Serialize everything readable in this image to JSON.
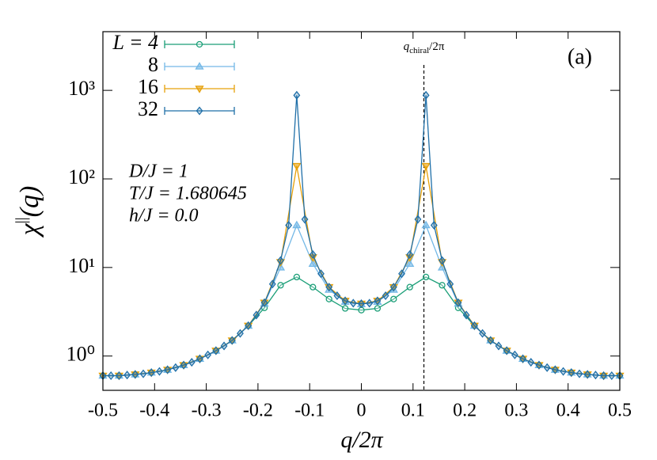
{
  "chart_data": {
    "type": "line",
    "xlabel": "q/2π",
    "ylabel": [
      "χ",
      "||",
      "(q)"
    ],
    "log_y": true,
    "xlim": [
      -0.5,
      0.5
    ],
    "ylim": [
      0.41,
      4600
    ],
    "xticks": [
      -0.5,
      -0.4,
      -0.3,
      -0.2,
      -0.1,
      0,
      0.1,
      0.2,
      0.3,
      0.4,
      0.5
    ],
    "yticks": [
      {
        "value": 1,
        "label": "10⁰"
      },
      {
        "value": 10,
        "label": "10¹"
      },
      {
        "value": 100,
        "label": "10²"
      },
      {
        "value": 1000,
        "label": "10³"
      }
    ],
    "legend": "top-left",
    "annotations": [
      "(a)",
      "D/J = 1",
      "T/J = 1.680645",
      "h/J = 0.0"
    ],
    "vline": {
      "x": 0.121,
      "label": [
        "q",
        "chiral",
        "/2π"
      ]
    },
    "series": [
      {
        "name": "L = 4",
        "color": "#1a9e77",
        "marker": "circle",
        "x": [
          -0.5,
          -0.46875,
          -0.4375,
          -0.40625,
          -0.375,
          -0.34375,
          -0.3125,
          -0.28125,
          -0.25,
          -0.21875,
          -0.1875,
          -0.15625,
          -0.125,
          -0.09375,
          -0.0625,
          -0.03125,
          0,
          0.03125,
          0.0625,
          0.09375,
          0.125,
          0.15625,
          0.1875,
          0.21875,
          0.25,
          0.28125,
          0.3125,
          0.34375,
          0.375,
          0.40625,
          0.4375,
          0.46875,
          0.5
        ],
        "values": [
          0.6,
          0.6,
          0.62,
          0.65,
          0.7,
          0.79,
          0.93,
          1.15,
          1.5,
          2.2,
          3.5,
          6.3,
          7.8,
          6,
          4.4,
          3.45,
          3.3,
          3.45,
          4.4,
          6,
          7.8,
          6.3,
          3.5,
          2.2,
          1.5,
          1.15,
          0.93,
          0.79,
          0.7,
          0.65,
          0.62,
          0.6,
          0.6
        ]
      },
      {
        "name": "8",
        "color": "#73b8e6",
        "marker": "triangle-up",
        "x": [
          -0.5,
          -0.46875,
          -0.4375,
          -0.40625,
          -0.375,
          -0.34375,
          -0.3125,
          -0.28125,
          -0.25,
          -0.21875,
          -0.1875,
          -0.15625,
          -0.125,
          -0.09375,
          -0.0625,
          -0.03125,
          0,
          0.03125,
          0.0625,
          0.09375,
          0.125,
          0.15625,
          0.1875,
          0.21875,
          0.25,
          0.28125,
          0.3125,
          0.34375,
          0.375,
          0.40625,
          0.4375,
          0.46875,
          0.5
        ],
        "values": [
          0.6,
          0.6,
          0.62,
          0.65,
          0.7,
          0.79,
          0.93,
          1.15,
          1.5,
          2.2,
          3.9,
          10,
          30,
          11,
          5.6,
          4.1,
          3.85,
          4.1,
          5.6,
          11,
          30,
          10,
          3.9,
          2.2,
          1.5,
          1.15,
          0.93,
          0.79,
          0.7,
          0.65,
          0.62,
          0.6,
          0.6
        ]
      },
      {
        "name": "16",
        "color": "#e6a00a",
        "marker": "triangle-down",
        "x": [
          -0.5,
          -0.46875,
          -0.4375,
          -0.40625,
          -0.375,
          -0.34375,
          -0.3125,
          -0.28125,
          -0.25,
          -0.21875,
          -0.1875,
          -0.15625,
          -0.125,
          -0.09375,
          -0.0625,
          -0.03125,
          0,
          0.03125,
          0.0625,
          0.09375,
          0.125,
          0.15625,
          0.1875,
          0.21875,
          0.25,
          0.28125,
          0.3125,
          0.34375,
          0.375,
          0.40625,
          0.4375,
          0.46875,
          0.5
        ],
        "values": [
          0.6,
          0.6,
          0.62,
          0.65,
          0.7,
          0.79,
          0.93,
          1.15,
          1.5,
          2.2,
          4,
          11.5,
          140,
          13,
          6,
          4.2,
          3.9,
          4.2,
          6,
          13,
          140,
          11.5,
          4,
          2.2,
          1.5,
          1.15,
          0.93,
          0.79,
          0.7,
          0.65,
          0.62,
          0.6,
          0.6
        ]
      },
      {
        "name": "32",
        "color": "#1f6fa8",
        "marker": "diamond",
        "x": [
          -0.5,
          -0.484375,
          -0.46875,
          -0.453125,
          -0.4375,
          -0.421875,
          -0.40625,
          -0.390625,
          -0.375,
          -0.359375,
          -0.34375,
          -0.328125,
          -0.3125,
          -0.296875,
          -0.28125,
          -0.265625,
          -0.25,
          -0.234375,
          -0.21875,
          -0.203125,
          -0.1875,
          -0.171875,
          -0.15625,
          -0.140625,
          -0.125,
          -0.109375,
          -0.09375,
          -0.078125,
          -0.0625,
          -0.046875,
          -0.03125,
          -0.015625,
          0,
          0.015625,
          0.03125,
          0.046875,
          0.0625,
          0.078125,
          0.09375,
          0.109375,
          0.125,
          0.140625,
          0.15625,
          0.171875,
          0.1875,
          0.203125,
          0.21875,
          0.234375,
          0.25,
          0.265625,
          0.28125,
          0.296875,
          0.3125,
          0.328125,
          0.34375,
          0.359375,
          0.375,
          0.390625,
          0.40625,
          0.421875,
          0.4375,
          0.453125,
          0.46875,
          0.484375,
          0.5
        ],
        "values": [
          0.6,
          0.6,
          0.6,
          0.61,
          0.62,
          0.63,
          0.65,
          0.67,
          0.7,
          0.74,
          0.79,
          0.85,
          0.93,
          1.03,
          1.15,
          1.3,
          1.5,
          1.8,
          2.2,
          2.9,
          4,
          6.5,
          12,
          30,
          880,
          35,
          14,
          8.5,
          6,
          4.8,
          4.2,
          3.95,
          3.9,
          3.95,
          4.2,
          4.8,
          6,
          8.5,
          14,
          35,
          880,
          30,
          12,
          6.5,
          4,
          2.9,
          2.2,
          1.8,
          1.5,
          1.3,
          1.15,
          1.03,
          0.93,
          0.85,
          0.79,
          0.74,
          0.7,
          0.67,
          0.65,
          0.63,
          0.62,
          0.61,
          0.6,
          0.6,
          0.6
        ]
      }
    ]
  }
}
